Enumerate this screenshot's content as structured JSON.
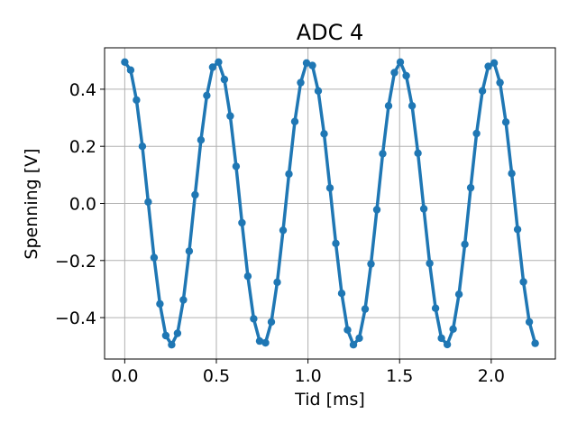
{
  "chart_data": {
    "type": "line",
    "title": "ADC 4",
    "xlabel": "Tid [ms]",
    "ylabel": "Spenning [V]",
    "xlim": [
      -0.11,
      2.35
    ],
    "ylim": [
      -0.545,
      0.545
    ],
    "xticks": [
      0.0,
      0.5,
      1.0,
      1.5,
      2.0
    ],
    "xtick_labels": [
      "0.0",
      "0.5",
      "1.0",
      "1.5",
      "2.0"
    ],
    "yticks": [
      -0.4,
      -0.2,
      0.0,
      0.2,
      0.4
    ],
    "ytick_labels": [
      "−0.4",
      "−0.2",
      "0.0",
      "0.2",
      "0.4"
    ],
    "grid": true,
    "line_color": "#1f77b4",
    "series": [
      {
        "name": "ADC 4",
        "x": [
          0.0,
          0.032,
          0.064,
          0.096,
          0.128,
          0.16,
          0.192,
          0.224,
          0.256,
          0.288,
          0.32,
          0.352,
          0.384,
          0.416,
          0.448,
          0.48,
          0.512,
          0.544,
          0.576,
          0.608,
          0.64,
          0.672,
          0.704,
          0.736,
          0.768,
          0.8,
          0.832,
          0.864,
          0.896,
          0.928,
          0.96,
          0.992,
          1.024,
          1.056,
          1.088,
          1.12,
          1.152,
          1.184,
          1.216,
          1.248,
          1.28,
          1.312,
          1.344,
          1.376,
          1.408,
          1.44,
          1.472,
          1.504,
          1.536,
          1.568,
          1.6,
          1.632,
          1.664,
          1.696,
          1.728,
          1.76,
          1.792,
          1.824,
          1.856,
          1.888,
          1.92,
          1.952,
          1.984,
          2.016,
          2.048,
          2.08,
          2.112,
          2.144,
          2.176,
          2.208,
          2.24
        ],
        "y": [
          0.495,
          0.467,
          0.362,
          0.2,
          0.005,
          -0.19,
          -0.352,
          -0.463,
          -0.495,
          -0.455,
          -0.338,
          -0.167,
          0.03,
          0.222,
          0.378,
          0.477,
          0.495,
          0.434,
          0.306,
          0.13,
          -0.068,
          -0.255,
          -0.404,
          -0.482,
          -0.488,
          -0.415,
          -0.276,
          -0.094,
          0.103,
          0.287,
          0.423,
          0.492,
          0.483,
          0.394,
          0.244,
          0.054,
          -0.14,
          -0.315,
          -0.443,
          -0.495,
          -0.472,
          -0.37,
          -0.212,
          -0.022,
          0.174,
          0.342,
          0.458,
          0.495,
          0.447,
          0.342,
          0.176,
          -0.019,
          -0.21,
          -0.367,
          -0.472,
          -0.494,
          -0.44,
          -0.318,
          -0.143,
          0.055,
          0.245,
          0.394,
          0.48,
          0.492,
          0.423,
          0.285,
          0.105,
          -0.091,
          -0.275,
          -0.415,
          -0.49
        ]
      }
    ]
  }
}
